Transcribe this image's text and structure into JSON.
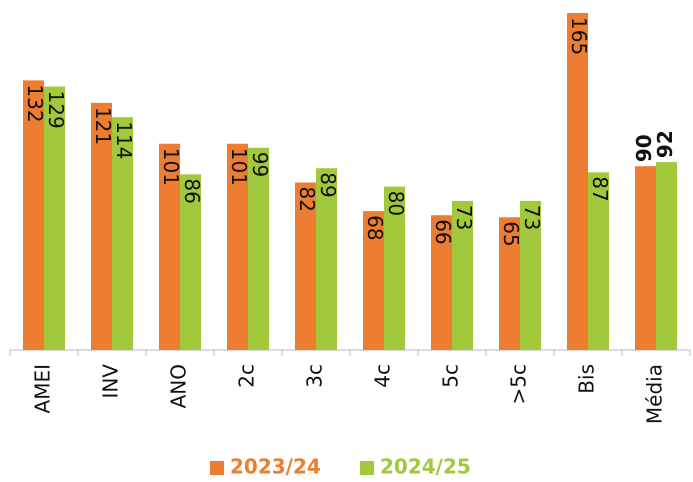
{
  "chart_data": {
    "type": "bar",
    "categories": [
      "AMEI",
      "INV",
      "ANO",
      "2c",
      "3c",
      "4c",
      "5c",
      ">5c",
      "Bis",
      "Média"
    ],
    "series": [
      {
        "name": "2023/24",
        "color": "#ED7D31",
        "values": [
          132,
          121,
          101,
          101,
          82,
          68,
          66,
          65,
          165,
          90
        ]
      },
      {
        "name": "2024/25",
        "color": "#A2C83C",
        "values": [
          129,
          114,
          86,
          99,
          89,
          80,
          73,
          73,
          87,
          92
        ]
      }
    ],
    "ylim": [
      0,
      165
    ],
    "legend": "bottom"
  }
}
